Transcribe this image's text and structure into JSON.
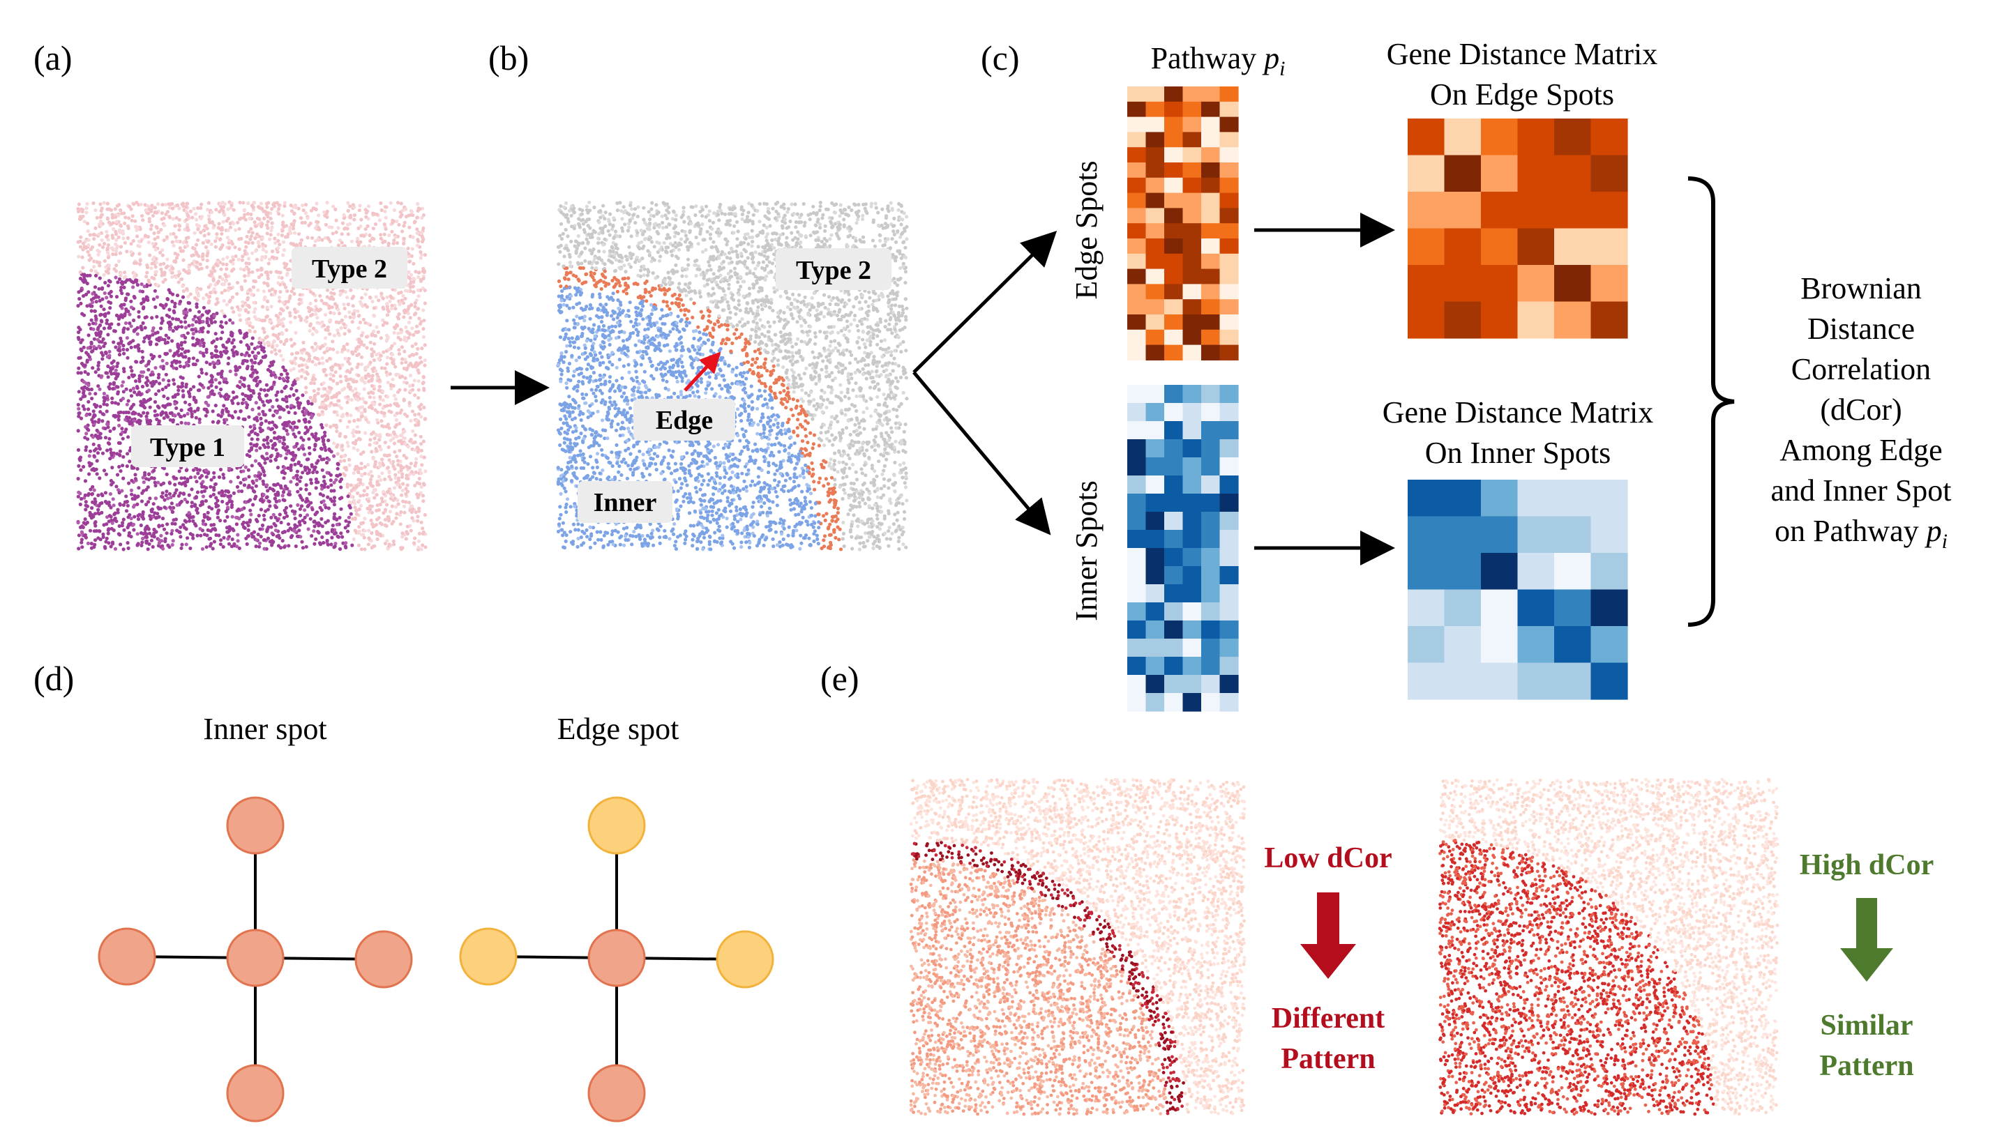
{
  "panels": {
    "a": {
      "label": "(a)",
      "type1": "Type 1",
      "type2": "Type 2",
      "colors": {
        "type1": "#9c3d98",
        "type2": "#f2c4c8"
      }
    },
    "b": {
      "label": "(b)",
      "type2": "Type 2",
      "edge": "Edge",
      "inner": "Inner",
      "colors": {
        "inner": "#7ba3e6",
        "edge": "#ea7a56",
        "type2": "#c9c9c9",
        "arrow": "#e8121c"
      }
    },
    "c": {
      "label": "(c)",
      "pathway_prefix": "Pathway ",
      "pathway_var": "p",
      "pathway_sub": "i",
      "edge_spots": "Edge Spots",
      "inner_spots": "Inner Spots",
      "edge_matrix_title": [
        "Gene Distance Matrix",
        "On Edge Spots"
      ],
      "inner_matrix_title": [
        "Gene Distance Matrix",
        "On Inner Spots"
      ],
      "result_lines": [
        "Brownian",
        "Distance",
        "Correlation",
        "(dCor)",
        "Among Edge",
        "and Inner Spot"
      ],
      "result_last_prefix": "on Pathway ",
      "colors": {
        "orange_scale": "Oranges",
        "blue_scale": "Blues"
      }
    },
    "d": {
      "label": "(d)",
      "inner_title": "Inner spot",
      "edge_title": "Edge spot",
      "colors": {
        "center_node": "#f0a48a",
        "node_stroke": "#e2734f",
        "edge_neighbor": "#fdd07c",
        "edge_neighbor_stroke": "#f2b33d"
      }
    },
    "e": {
      "label": "(e)",
      "low": "Low dCor",
      "low_result": [
        "Different",
        "Pattern"
      ],
      "high": "High dCor",
      "high_result": [
        "Similar",
        "Pattern"
      ],
      "colors": {
        "low": "#b40d1e",
        "high": "#4e7a2d"
      }
    }
  }
}
